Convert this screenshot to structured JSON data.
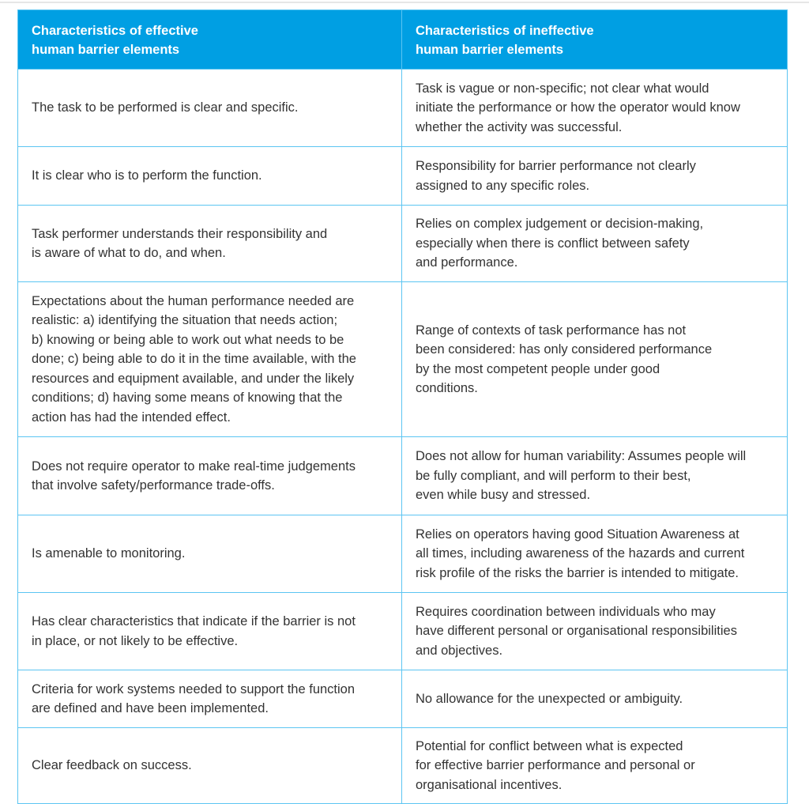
{
  "table": {
    "headers": [
      "Characteristics of effective\nhuman barrier elements",
      "Characteristics of ineffective\nhuman barrier elements"
    ],
    "rows": [
      [
        "The task to be performed is clear and specific.",
        "Task is vague or non-specific; not clear what would\ninitiate the performance or how the operator would know\nwhether the activity was successful."
      ],
      [
        "It is clear who is to perform the function.",
        "Responsibility for barrier performance not clearly\nassigned to any specific roles."
      ],
      [
        "Task performer understands their responsibility and\nis aware of what to do, and when.",
        "Relies on complex judgement or decision-making,\nespecially when there is conflict between safety\nand performance."
      ],
      [
        "Expectations about the human performance needed are\nrealistic:  a) identifying the situation that needs action;\nb) knowing or being able to work out what needs to be\ndone; c) being able to do it in the time available, with the\nresources and equipment available, and under the likely\nconditions; d) having some means of knowing that the\naction has had the intended effect.",
        "Range of contexts of task performance has not\nbeen considered: has only considered performance\nby the most competent people under good\nconditions."
      ],
      [
        "Does not require operator to make real-time judgements\nthat involve safety/performance trade-offs.",
        "Does not allow for human variability: Assumes people will\nbe fully compliant, and will perform to their best,\neven while busy and stressed."
      ],
      [
        "Is amenable to monitoring.",
        "Relies on operators having good Situation Awareness at\nall times, including awareness of the hazards and current\nrisk profile of the risks the barrier is intended to mitigate."
      ],
      [
        "Has clear characteristics that indicate if the barrier is not\nin place, or not likely to be effective.",
        "Requires coordination between individuals who may\nhave different personal or organisational responsibilities\nand objectives."
      ],
      [
        "Criteria for work systems needed to support the function\nare defined and have been implemented.",
        "No allowance for the unexpected or ambiguity."
      ],
      [
        "Clear feedback on success.",
        "Potential for conflict between what is expected\nfor effective barrier performance and personal or\norganisational incentives."
      ]
    ]
  }
}
